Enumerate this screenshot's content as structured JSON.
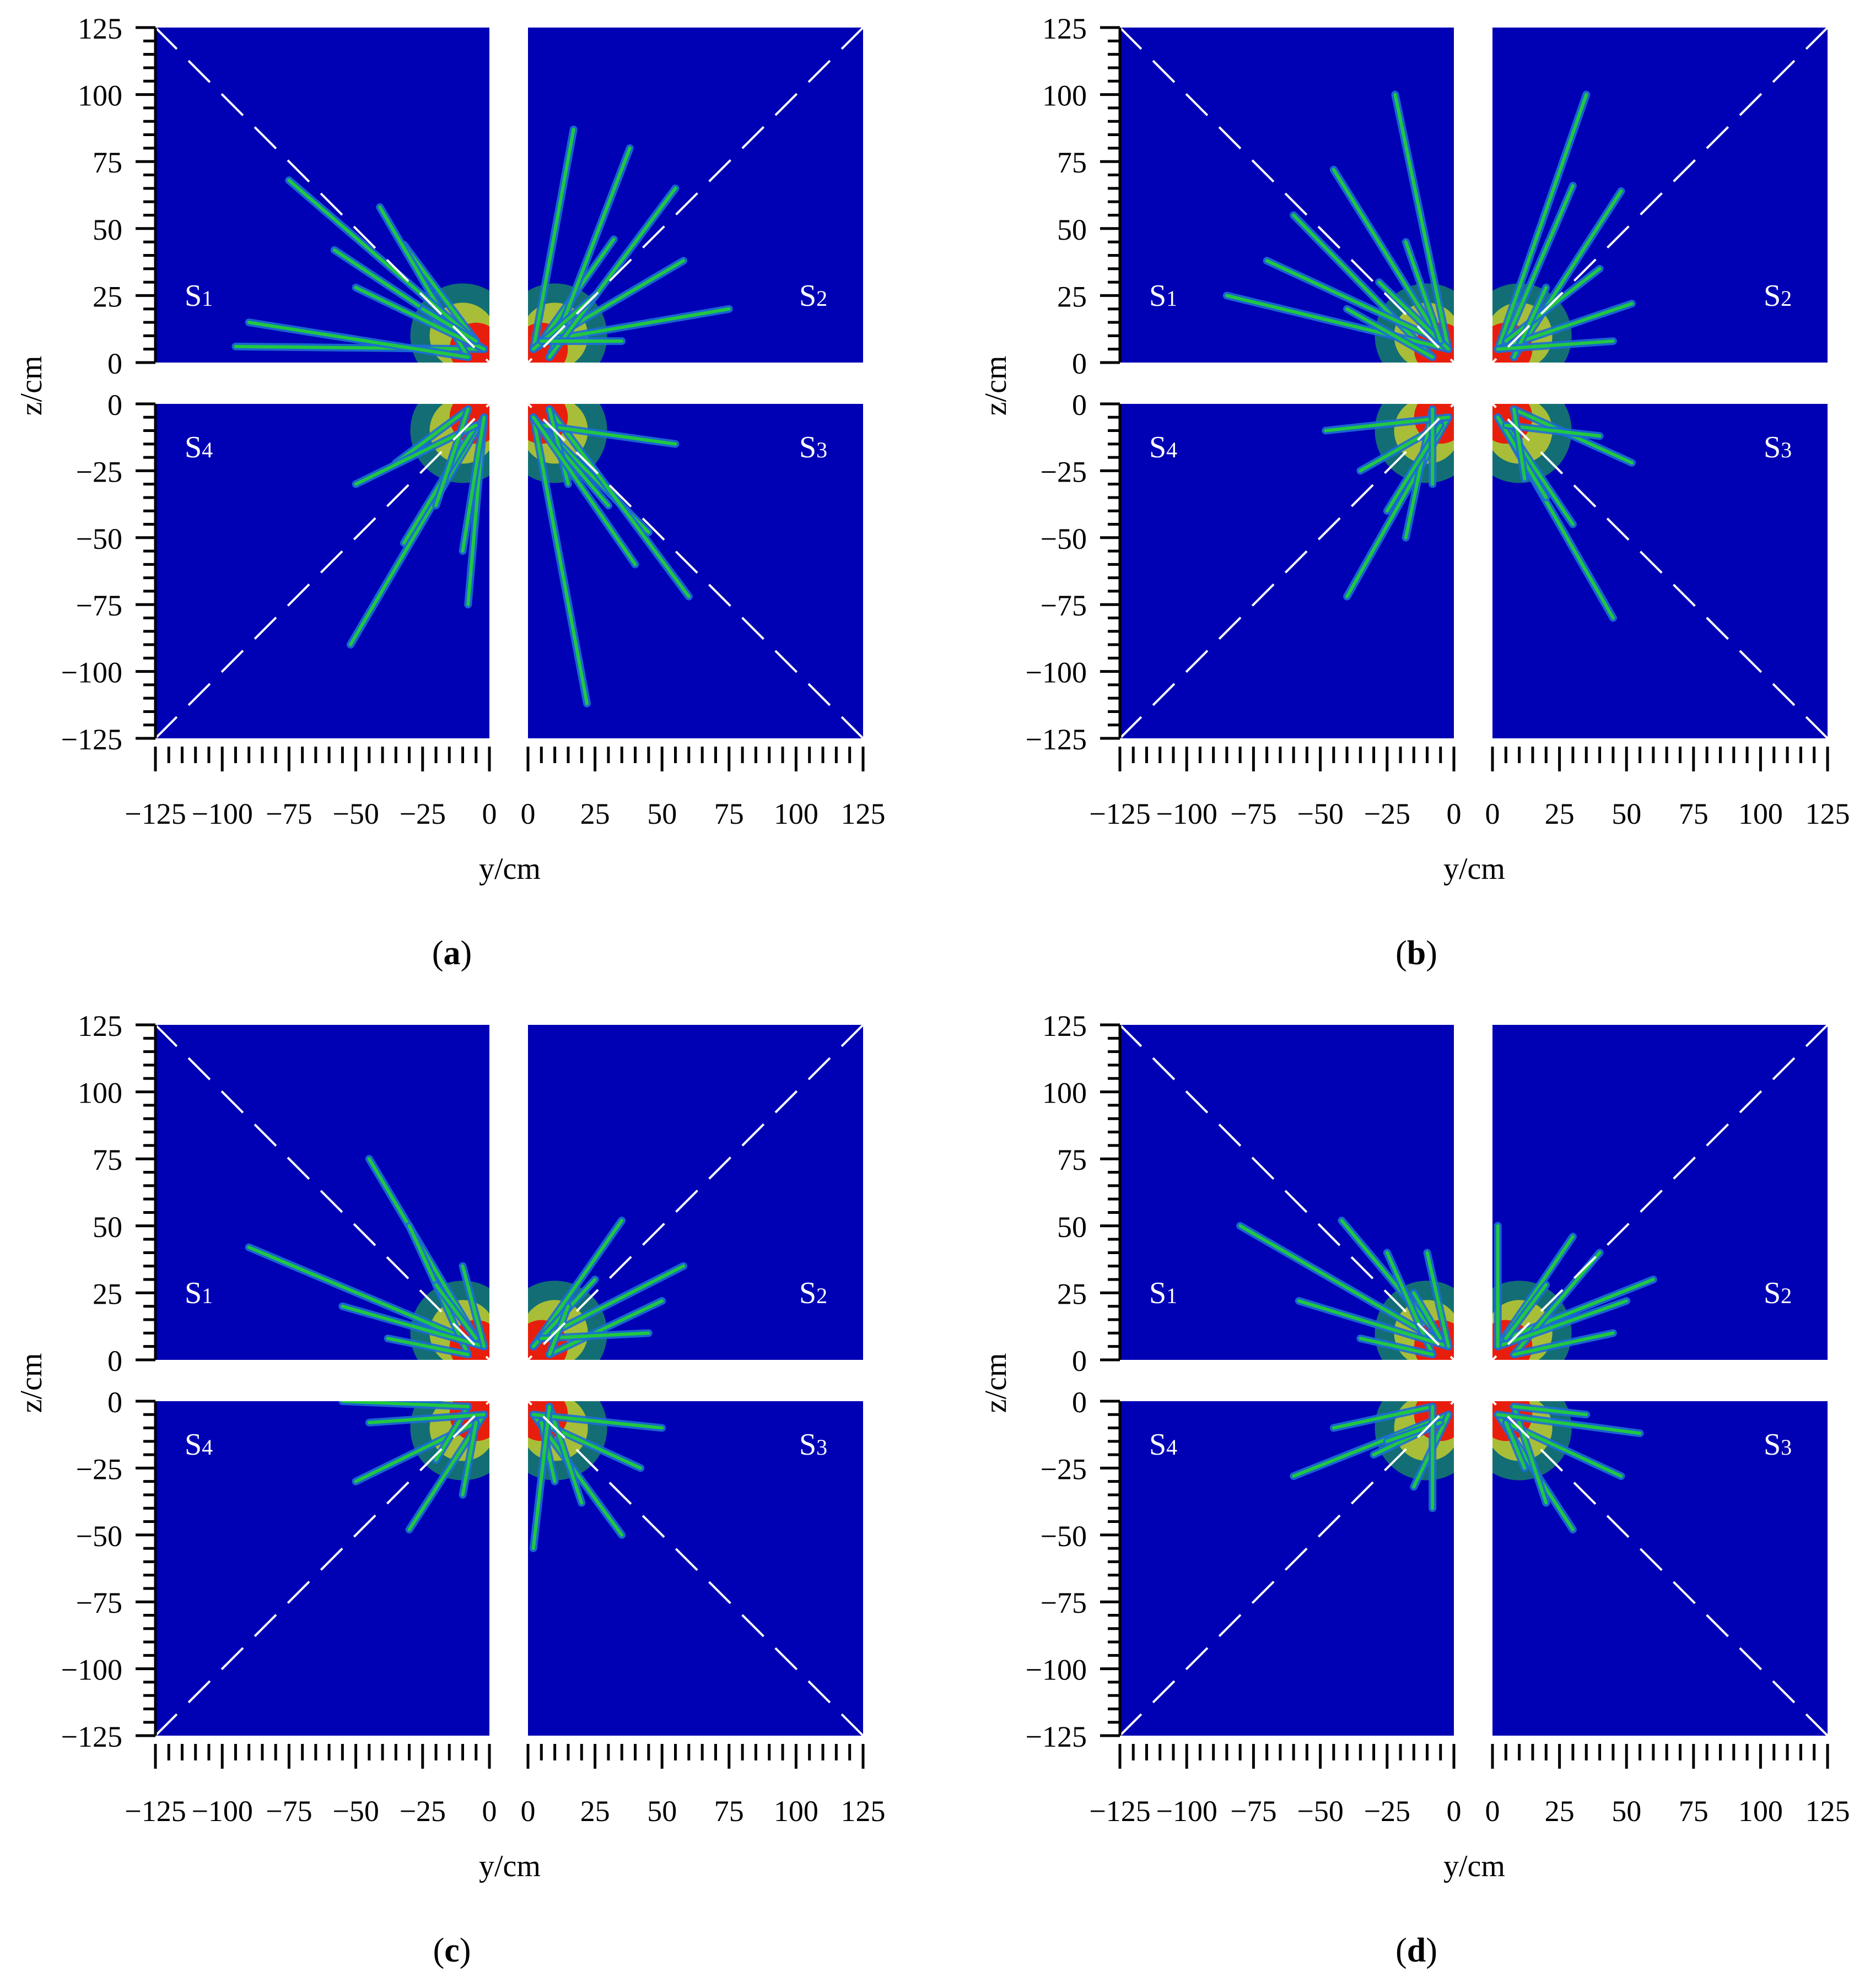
{
  "figure": {
    "background_color": "#0000b4",
    "crack_colors": [
      "#1c6fd6",
      "#17b6a0",
      "#21c840",
      "#e8e020",
      "#e81e0c"
    ],
    "dashed_line_color": "#ffffff",
    "y_axis_label": "z/cm",
    "x_axis_label": "y/cm",
    "z_ticks_upper": [
      "125",
      "100",
      "75",
      "50",
      "25",
      "0"
    ],
    "z_ticks_lower": [
      "0",
      "−25",
      "−50",
      "−75",
      "−100",
      "−125"
    ],
    "y_ticks_left": [
      "−125",
      "−100",
      "−75",
      "−50",
      "−25",
      "0"
    ],
    "y_ticks_right": [
      "0",
      "25",
      "50",
      "75",
      "100",
      "125"
    ],
    "quadrant_labels": {
      "s1": {
        "letter": "S",
        "sub": "1"
      },
      "s2": {
        "letter": "S",
        "sub": "2"
      },
      "s3": {
        "letter": "S",
        "sub": "3"
      },
      "s4": {
        "letter": "S",
        "sub": "4"
      }
    },
    "panels": [
      {
        "id": "a",
        "caption": "a",
        "paren_open": "(",
        "paren_close": ")",
        "cracks": {
          "q1": [
            [
              95,
              6
            ],
            [
              32,
              44
            ],
            [
              41,
              58
            ],
            [
              58,
              42
            ],
            [
              75,
              68
            ],
            [
              90,
              15
            ],
            [
              50,
              28
            ],
            [
              25,
              20
            ]
          ],
          "q2": [
            [
              17,
              87
            ],
            [
              32,
              46
            ],
            [
              38,
              80
            ],
            [
              58,
              38
            ],
            [
              75,
              20
            ],
            [
              55,
              65
            ],
            [
              25,
              25
            ],
            [
              35,
              8
            ]
          ],
          "q3": [
            [
              22,
              112
            ],
            [
              45,
              48
            ],
            [
              60,
              72
            ],
            [
              30,
              38
            ],
            [
              55,
              15
            ],
            [
              15,
              30
            ],
            [
              40,
              60
            ]
          ],
          "q4": [
            [
              52,
              90
            ],
            [
              32,
              52
            ],
            [
              35,
              22
            ],
            [
              8,
              75
            ],
            [
              50,
              30
            ],
            [
              20,
              38
            ],
            [
              10,
              55
            ]
          ]
        }
      },
      {
        "id": "b",
        "caption": "b",
        "paren_open": "(",
        "paren_close": ")",
        "cracks": {
          "q1": [
            [
              22,
              100
            ],
            [
              45,
              72
            ],
            [
              60,
              55
            ],
            [
              85,
              25
            ],
            [
              70,
              38
            ],
            [
              40,
              20
            ],
            [
              28,
              30
            ],
            [
              18,
              45
            ]
          ],
          "q2": [
            [
              35,
              100
            ],
            [
              30,
              66
            ],
            [
              48,
              64
            ],
            [
              52,
              22
            ],
            [
              40,
              35
            ],
            [
              20,
              28
            ],
            [
              45,
              8
            ]
          ],
          "q3": [
            [
              45,
              80
            ],
            [
              30,
              45
            ],
            [
              52,
              22
            ],
            [
              20,
              35
            ],
            [
              40,
              12
            ],
            [
              12,
              28
            ]
          ],
          "q4": [
            [
              40,
              72
            ],
            [
              35,
              25
            ],
            [
              18,
              50
            ],
            [
              48,
              10
            ],
            [
              25,
              40
            ],
            [
              8,
              30
            ]
          ]
        }
      },
      {
        "id": "c",
        "caption": "c",
        "paren_open": "(",
        "paren_close": ")",
        "cracks": {
          "q1": [
            [
              90,
              42
            ],
            [
              45,
              75
            ],
            [
              30,
              50
            ],
            [
              55,
              20
            ],
            [
              20,
              28
            ],
            [
              38,
              8
            ],
            [
              10,
              35
            ]
          ],
          "q2": [
            [
              35,
              52
            ],
            [
              58,
              35
            ],
            [
              50,
              22
            ],
            [
              25,
              30
            ],
            [
              45,
              10
            ],
            [
              15,
              20
            ]
          ],
          "q3": [
            [
              35,
              50
            ],
            [
              42,
              25
            ],
            [
              20,
              38
            ],
            [
              50,
              10
            ],
            [
              10,
              30
            ],
            [
              2,
              55
            ]
          ],
          "q4": [
            [
              30,
              48
            ],
            [
              50,
              30
            ],
            [
              20,
              22
            ],
            [
              45,
              8
            ],
            [
              10,
              35
            ],
            [
              55,
              0
            ]
          ]
        }
      },
      {
        "id": "d",
        "caption": "d",
        "paren_open": "(",
        "paren_close": ")",
        "cracks": {
          "q1": [
            [
              80,
              50
            ],
            [
              42,
              52
            ],
            [
              25,
              40
            ],
            [
              58,
              22
            ],
            [
              15,
              25
            ],
            [
              35,
              8
            ],
            [
              10,
              40
            ]
          ],
          "q2": [
            [
              30,
              46
            ],
            [
              60,
              30
            ],
            [
              40,
              40
            ],
            [
              50,
              22
            ],
            [
              20,
              28
            ],
            [
              45,
              10
            ],
            [
              2,
              50
            ]
          ],
          "q3": [
            [
              30,
              48
            ],
            [
              48,
              28
            ],
            [
              20,
              38
            ],
            [
              55,
              12
            ],
            [
              12,
              25
            ],
            [
              35,
              5
            ]
          ],
          "q4": [
            [
              60,
              28
            ],
            [
              30,
              20
            ],
            [
              45,
              10
            ],
            [
              15,
              32
            ],
            [
              25,
              15
            ],
            [
              8,
              40
            ]
          ]
        }
      }
    ]
  }
}
